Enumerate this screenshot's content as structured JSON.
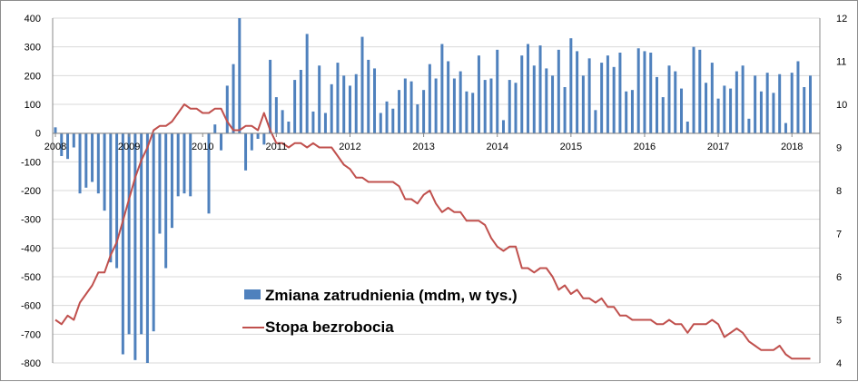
{
  "chart_data": {
    "type": "bar+line",
    "title": "",
    "series": [
      {
        "name": "Zmiana zatrudnienia (mdm, w tys.)",
        "type": "bar",
        "axis": "left",
        "color": "#4f81bd",
        "values": [
          20,
          -80,
          -90,
          -50,
          -210,
          -190,
          -170,
          -210,
          -270,
          -450,
          -470,
          -770,
          -700,
          -790,
          -700,
          -800,
          -690,
          -350,
          -470,
          -330,
          -220,
          -210,
          -220,
          0,
          0,
          -280,
          30,
          -60,
          165,
          240,
          400,
          -130,
          -60,
          -20,
          -40,
          255,
          125,
          80,
          40,
          185,
          220,
          345,
          75,
          235,
          70,
          170,
          245,
          200,
          165,
          205,
          335,
          255,
          225,
          70,
          110,
          85,
          150,
          190,
          180,
          100,
          150,
          240,
          190,
          310,
          250,
          190,
          215,
          145,
          140,
          270,
          185,
          190,
          290,
          45,
          185,
          175,
          270,
          310,
          235,
          305,
          225,
          200,
          290,
          160,
          330,
          285,
          200,
          260,
          80,
          245,
          270,
          230,
          280,
          145,
          150,
          295,
          285,
          280,
          195,
          125,
          235,
          215,
          155,
          40,
          300,
          290,
          175,
          245,
          120,
          165,
          155,
          215,
          235,
          50,
          200,
          145,
          210,
          140,
          205,
          35,
          210,
          250,
          160,
          200
        ]
      },
      {
        "name": "Stopa bezrobocia",
        "type": "line",
        "axis": "right",
        "color": "#c0504d",
        "values": [
          5.0,
          4.9,
          5.1,
          5.0,
          5.4,
          5.6,
          5.8,
          6.1,
          6.1,
          6.5,
          6.8,
          7.3,
          7.8,
          8.3,
          8.7,
          9.0,
          9.4,
          9.5,
          9.5,
          9.6,
          9.8,
          10.0,
          9.9,
          9.9,
          9.8,
          9.8,
          9.9,
          9.9,
          9.6,
          9.4,
          9.4,
          9.5,
          9.5,
          9.4,
          9.8,
          9.4,
          9.1,
          9.1,
          9.0,
          9.1,
          9.1,
          9.0,
          9.1,
          9.0,
          9.0,
          9.0,
          8.8,
          8.6,
          8.5,
          8.3,
          8.3,
          8.2,
          8.2,
          8.2,
          8.2,
          8.2,
          8.1,
          7.8,
          7.8,
          7.7,
          7.9,
          8.0,
          7.7,
          7.5,
          7.6,
          7.5,
          7.5,
          7.3,
          7.3,
          7.3,
          7.2,
          6.9,
          6.7,
          6.6,
          6.7,
          6.7,
          6.2,
          6.2,
          6.1,
          6.2,
          6.2,
          6.0,
          5.7,
          5.8,
          5.6,
          5.7,
          5.5,
          5.5,
          5.4,
          5.5,
          5.3,
          5.3,
          5.1,
          5.1,
          5.0,
          5.0,
          5.0,
          5.0,
          4.9,
          4.9,
          5.0,
          4.9,
          4.9,
          4.7,
          4.9,
          4.9,
          4.9,
          5.0,
          4.9,
          4.6,
          4.7,
          4.8,
          4.7,
          4.5,
          4.4,
          4.3,
          4.3,
          4.3,
          4.4,
          4.2,
          4.1,
          4.1,
          4.1,
          4.1
        ]
      }
    ],
    "x_start": "2008-01",
    "x_labels": [
      "2008",
      "2009",
      "2010",
      "2011",
      "2012",
      "2013",
      "2014",
      "2015",
      "2016",
      "2017",
      "2018"
    ],
    "left_axis": {
      "ticks": [
        "400",
        "300",
        "200",
        "100",
        "0",
        "-100",
        "-200",
        "-300",
        "-400",
        "-500",
        "-600",
        "-700",
        "-800"
      ],
      "range": [
        -800,
        400
      ]
    },
    "right_axis": {
      "ticks": [
        "12",
        "11",
        "10",
        "9",
        "8",
        "7",
        "6",
        "5",
        "4"
      ],
      "range": [
        4,
        12
      ]
    },
    "grid": "horizontal",
    "legend_position": "bottom-center, inside plot"
  }
}
